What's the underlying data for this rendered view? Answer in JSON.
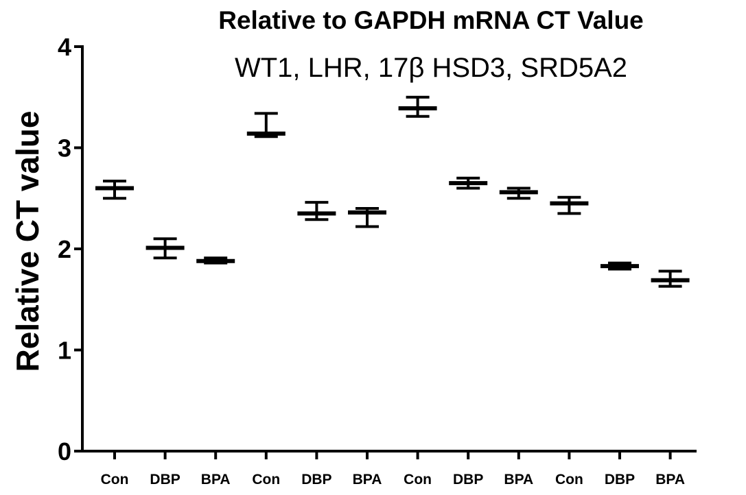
{
  "chart_data": {
    "type": "scatter",
    "title": "Relative to GAPDH mRNA CT Value",
    "subtitle": "WT1,   LHR,  17β HSD3,   SRD5A2",
    "ylabel": "Relative CT value",
    "xlabel": "",
    "ylim": [
      0,
      4
    ],
    "yticks": [
      "0",
      "1",
      "2",
      "3",
      "4"
    ],
    "grid": false,
    "categories": [
      "Con",
      "DBP",
      "BPA",
      "Con",
      "DBP",
      "BPA",
      "Con",
      "DBP",
      "BPA",
      "Con",
      "DBP",
      "BPA"
    ],
    "series": [
      {
        "mean": [
          2.6,
          2.01,
          1.88,
          3.14,
          2.35,
          2.36,
          3.39,
          2.65,
          2.56,
          2.45,
          1.83,
          1.69
        ],
        "upper": [
          2.67,
          2.1,
          1.91,
          3.34,
          2.46,
          2.4,
          3.5,
          2.7,
          2.6,
          2.51,
          1.86,
          1.78
        ],
        "lower": [
          2.5,
          1.91,
          1.86,
          3.11,
          2.29,
          2.22,
          3.31,
          2.6,
          2.5,
          2.35,
          1.8,
          1.63
        ]
      }
    ]
  },
  "colors": {
    "ink": "#000000",
    "background": "#ffffff"
  }
}
